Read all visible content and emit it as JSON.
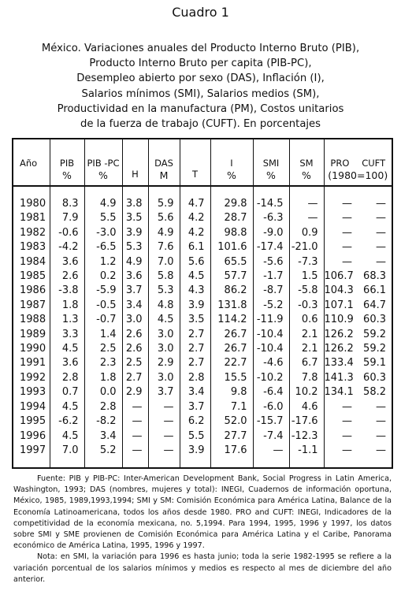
{
  "title": "Cuadro 1",
  "subtitle": [
    "México. Variaciones anuales del Producto Interno Bruto (PIB),",
    "Producto Interno Bruto per capita (PIB-PC),",
    "Desempleo abierto por sexo (DAS), Inflación (I),",
    "Salarios mínimos (SMI), Salarios medios (SM),",
    "Productividad en la manufactura (PM), Costos unitarios",
    "de la fuerza de trabajo (CUFT). En porcentajes"
  ],
  "table": {
    "header": {
      "year": "Año",
      "pib": [
        "PIB",
        "%"
      ],
      "pibpc": [
        "PIB -PC",
        "%"
      ],
      "h": "H",
      "das": [
        "DAS",
        "M"
      ],
      "t": "T",
      "i": [
        "I",
        "%"
      ],
      "smi": [
        "SMI",
        "%"
      ],
      "sm": [
        "SM",
        "%"
      ],
      "pro": "PRO",
      "cuft": "CUFT",
      "base": "(1980=100)"
    },
    "rows": [
      [
        "1980",
        "8.3",
        "4.9",
        "3.8",
        "5.9",
        "4.7",
        "29.8",
        "-14.5",
        "—",
        "—",
        "—"
      ],
      [
        "1981",
        "7.9",
        "5.5",
        "3.5",
        "5.6",
        "4.2",
        "28.7",
        "-6.3",
        "—",
        "—",
        "—"
      ],
      [
        "1982",
        "-0.6",
        "-3.0",
        "3.9",
        "4.9",
        "4.2",
        "98.8",
        "-9.0",
        "0.9",
        "—",
        "—"
      ],
      [
        "1983",
        "-4.2",
        "-6.5",
        "5.3",
        "7.6",
        "6.1",
        "101.6",
        "-17.4",
        "-21.0",
        "—",
        "—"
      ],
      [
        "1984",
        "3.6",
        "1.2",
        "4.9",
        "7.0",
        "5.6",
        "65.5",
        "-5.6",
        "-7.3",
        "—",
        "—"
      ],
      [
        "1985",
        "2.6",
        "0.2",
        "3.6",
        "5.8",
        "4.5",
        "57.7",
        "-1.7",
        "1.5",
        "106.7",
        "68.3"
      ],
      [
        "1986",
        "-3.8",
        "-5.9",
        "3.7",
        "5.3",
        "4.3",
        "86.2",
        "-8.7",
        "-5.8",
        "104.3",
        "66.1"
      ],
      [
        "1987",
        "1.8",
        "-0.5",
        "3.4",
        "4.8",
        "3.9",
        "131.8",
        "-5.2",
        "-0.3",
        "107.1",
        "64.7"
      ],
      [
        "1988",
        "1.3",
        "-0.7",
        "3.0",
        "4.5",
        "3.5",
        "114.2",
        "-11.9",
        "0.6",
        "110.9",
        "60.3"
      ],
      [
        "1989",
        "3.3",
        "1.4",
        "2.6",
        "3.0",
        "2.7",
        "26.7",
        "-10.4",
        "2.1",
        "126.2",
        "59.2"
      ],
      [
        "1990",
        "4.5",
        "2.5",
        "2.6",
        "3.0",
        "2.7",
        "26.7",
        "-10.4",
        "2.1",
        "126.2",
        "59.2"
      ],
      [
        "1991",
        "3.6",
        "2.3",
        "2.5",
        "2.9",
        "2.7",
        "22.7",
        "-4.6",
        "6.7",
        "133.4",
        "59.1"
      ],
      [
        "1992",
        "2.8",
        "1.8",
        "2.7",
        "3.0",
        "2.8",
        "15.5",
        "-10.2",
        "7.8",
        "141.3",
        "60.3"
      ],
      [
        "1993",
        "0.7",
        "0.0",
        "2.9",
        "3.7",
        "3.4",
        "9.8",
        "-6.4",
        "10.2",
        "134.1",
        "58.2"
      ],
      [
        "1994",
        "4.5",
        "2.8",
        "—",
        "—",
        "3.7",
        "7.1",
        "-6.0",
        "4.6",
        "—",
        "—"
      ],
      [
        "1995",
        "-6.2",
        "-8.2",
        "—",
        "—",
        "6.2",
        "52.0",
        "-15.7",
        "-17.6",
        "—",
        "—"
      ],
      [
        "1996",
        "4.5",
        "3.4",
        "—",
        "—",
        "5.5",
        "27.7",
        "-7.4",
        "-12.3",
        "—",
        "—"
      ],
      [
        "1997",
        "7.0",
        "5.2",
        "—",
        "—",
        "3.9",
        "17.6",
        "—",
        "-1.1",
        "—",
        "—"
      ]
    ]
  },
  "footnotes": {
    "source": "Fuente: PIB y PIB-PC: Inter-American Development Bank, Social Progress in Latin America, Washington, 1993; DAS (nombres, mujeres y total): INEGI, Cuadernos de información oportuna, México, 1985, 1989,1993,1994; SMI y SM: Comisión Económica para América Latina, Balance de la Economía Latinoamericana, todos los años desde 1980. PRO and CUFT: INEGI, Indicadores de la competitividad de la economía mexicana, no. 5,1994. Para 1994, 1995, 1996 y 1997, los datos sobre SMI y SME provienen de Comisión Económica para América Latina y el Caribe, Panorama económico de América Latina, 1995, 1996 y 1997.",
    "note": "Nota: en SMI, la variación para 1996 es hasta junio; toda la serie 1982-1995 se refiere a la variación porcentual de los salarios mínimos y medios es respecto al mes de diciembre del año anterior."
  }
}
